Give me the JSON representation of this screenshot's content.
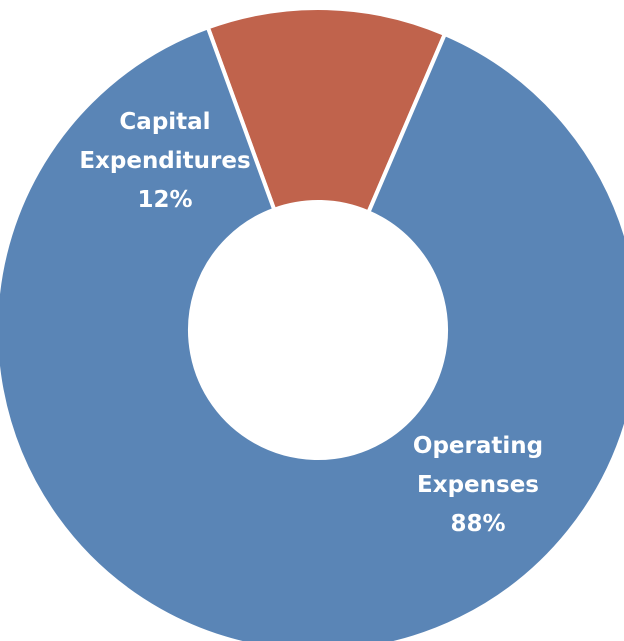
{
  "chart_data": {
    "type": "pie",
    "donut": true,
    "start_angle_deg": -20,
    "slices": [
      {
        "label_lines": [
          "Capital",
          "Expenditures",
          "12%"
        ],
        "name": "Capital Expenditures",
        "value": 12,
        "color": "#c0634c"
      },
      {
        "label_lines": [
          "Operating",
          "Expenses",
          "88%"
        ],
        "name": "Operating Expenses",
        "value": 88,
        "color": "#5a85b6"
      }
    ],
    "legend": "none",
    "grid": false
  }
}
